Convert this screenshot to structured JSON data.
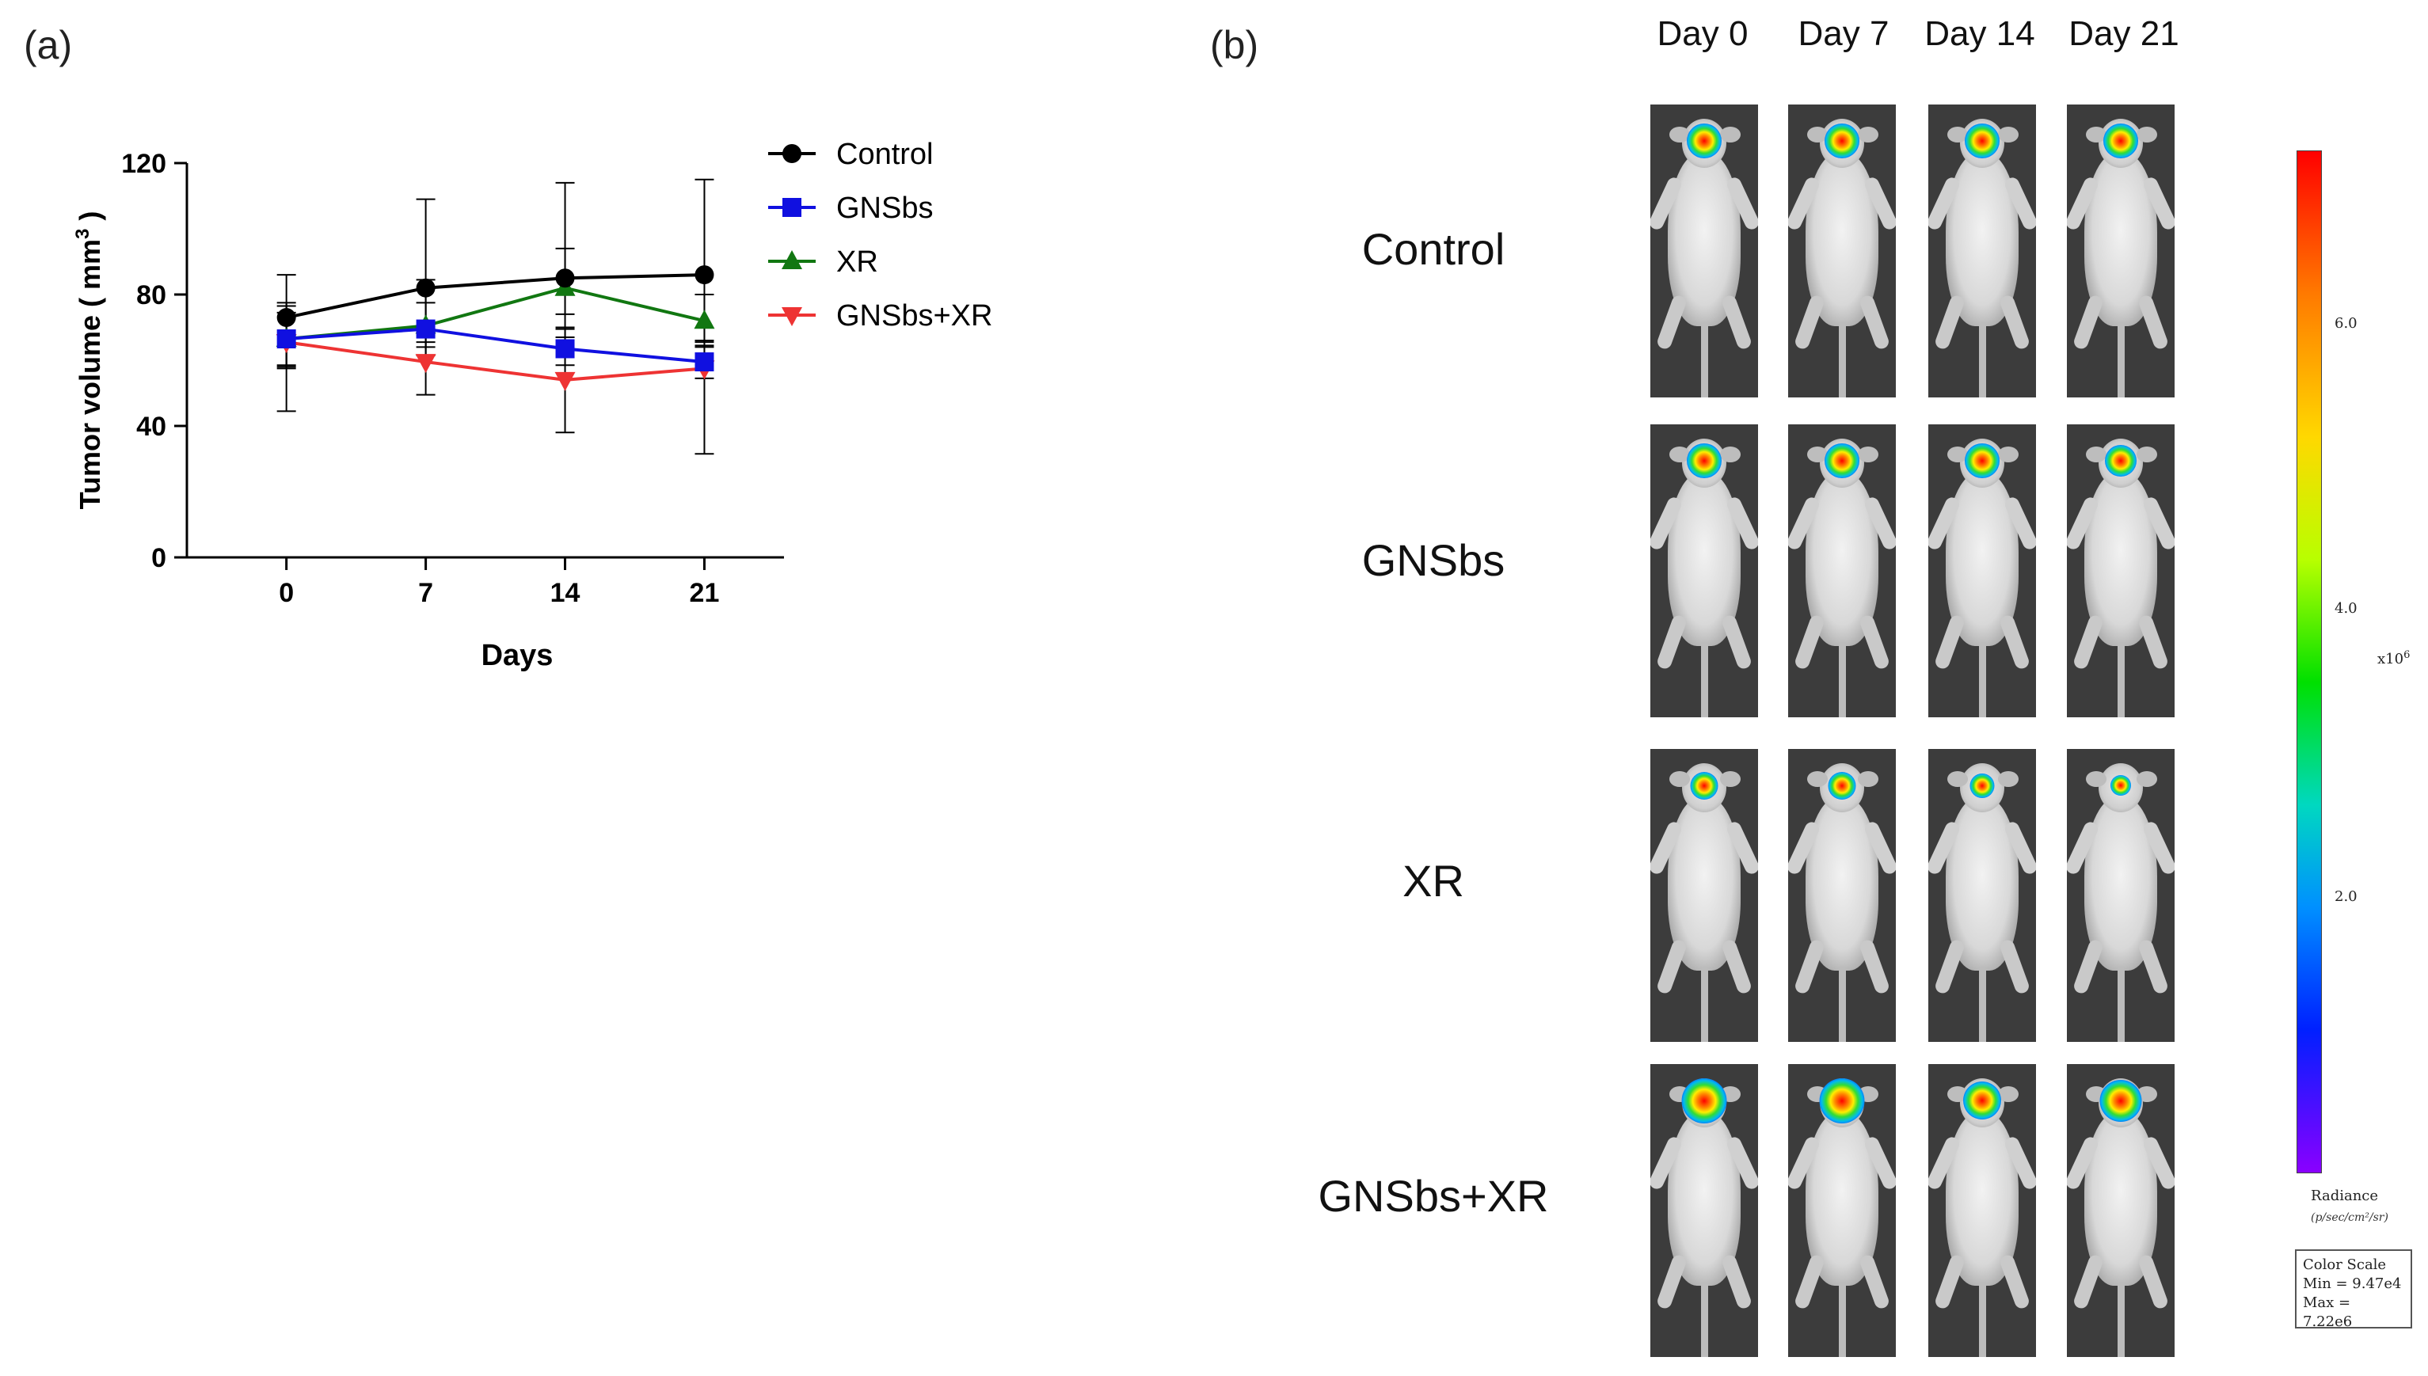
{
  "panel_a_label": "(a)",
  "panel_b_label": "(b)",
  "chart_data": {
    "type": "line",
    "title": "",
    "xlabel": "Days",
    "ylabel": "Tumor volume ( mm",
    "ylabel_sup": "3",
    "ylabel_end": " )",
    "x": [
      0,
      7,
      14,
      21
    ],
    "x_tick_labels": [
      "0",
      "7",
      "14",
      "21"
    ],
    "xlim": [
      -5,
      25
    ],
    "ylim": [
      0,
      120
    ],
    "y_ticks": [
      0,
      40,
      80,
      120
    ],
    "y_tick_labels": [
      "0",
      "40",
      "80",
      "120"
    ],
    "legend_position": "top-right",
    "series": [
      {
        "name": "Control",
        "color": "#000000",
        "marker": "circle",
        "values": [
          73,
          82,
          85,
          86
        ],
        "err_up": [
          13,
          27,
          29,
          29
        ],
        "err_down": [
          15,
          18,
          18,
          20
        ]
      },
      {
        "name": "GNSbs",
        "color": "#1010e0",
        "marker": "square",
        "values": [
          66.5,
          69.5,
          63.5,
          59.5
        ],
        "err_up": [
          10,
          8,
          6,
          6
        ],
        "err_down": [
          8,
          8,
          5,
          5
        ]
      },
      {
        "name": "XR",
        "color": "#117711",
        "marker": "triangle-up",
        "values": [
          66.5,
          70.5,
          82,
          72
        ],
        "err_up": [
          11,
          14,
          12,
          8
        ],
        "err_down": [
          9,
          9,
          8,
          8
        ]
      },
      {
        "name": "GNSbs+XR",
        "color": "#ee3333",
        "marker": "triangle-down",
        "values": [
          65.5,
          59.5,
          54,
          57.5
        ],
        "err_up": [
          9,
          6,
          16,
          7
        ],
        "err_down": [
          21,
          10,
          16,
          26
        ]
      }
    ]
  },
  "imaging": {
    "days": [
      "Day 0",
      "Day 7",
      "Day 14",
      "Day 21"
    ],
    "groups": [
      "Control",
      "GNSbs",
      "XR",
      "GNSbs+XR"
    ],
    "scale_ticks": [
      "6.0",
      "4.0",
      "2.0"
    ],
    "scale_units": "x10",
    "scale_units_exp": "6",
    "radiance_label": "Radiance",
    "radiance_units": "(p/sec/cm²/sr)",
    "color_scale_title": "Color Scale",
    "color_scale_min": "Min = 9.47e4",
    "color_scale_max": "Max = 7.22e6"
  }
}
